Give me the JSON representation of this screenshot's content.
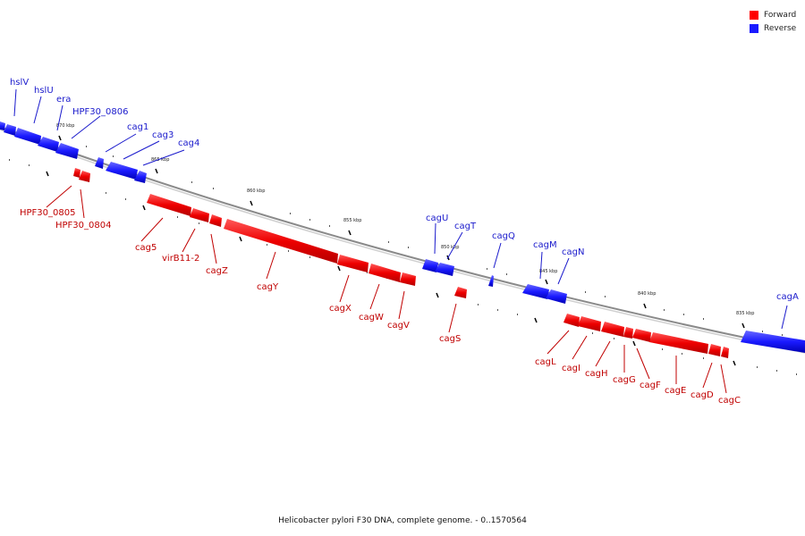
{
  "legend": {
    "forward_label": "Forward",
    "reverse_label": "Reverse",
    "forward_color": "#ff0000",
    "reverse_color": "#1a1aff"
  },
  "caption": "Helicobacter pylori F30 DNA, complete genome. - 0..1570564",
  "colors": {
    "forward_label": "#c00000",
    "reverse_label": "#1a1acc",
    "backbone": "#777777"
  },
  "scale": {
    "kbp_labels": [
      "870 kbp",
      "865 kbp",
      "860 kbp",
      "855 kbp",
      "850 kbp",
      "845 kbp",
      "840 kbp",
      "835 kbp"
    ]
  },
  "genes": {
    "reverse": [
      "hslV",
      "hslU",
      "era",
      "HPF30_0806",
      "cag1",
      "cag3",
      "cag4",
      "cagU",
      "cagT",
      "cagQ",
      "cagM",
      "cagN",
      "cagA"
    ],
    "forward": [
      "HPF30_0805",
      "HPF30_0804",
      "cag5",
      "virB11-2",
      "cagZ",
      "cagY",
      "cagX",
      "cagW",
      "cagV",
      "cagS",
      "cagL",
      "cagI",
      "cagH",
      "cagG",
      "cagF",
      "cagE",
      "cagD",
      "cagC"
    ]
  }
}
